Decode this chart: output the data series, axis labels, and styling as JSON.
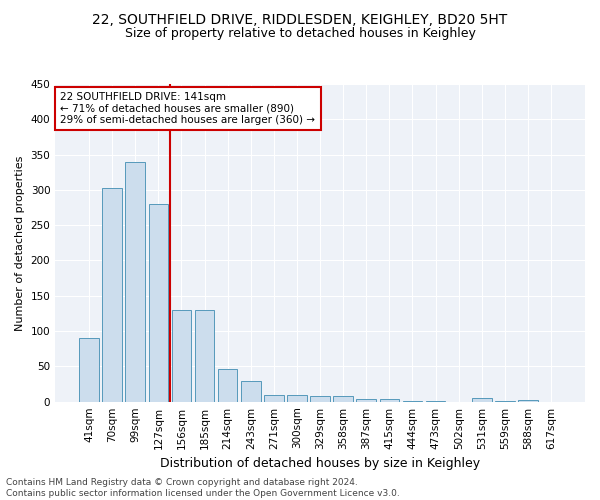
{
  "title_line1": "22, SOUTHFIELD DRIVE, RIDDLESDEN, KEIGHLEY, BD20 5HT",
  "title_line2": "Size of property relative to detached houses in Keighley",
  "xlabel": "Distribution of detached houses by size in Keighley",
  "ylabel": "Number of detached properties",
  "categories": [
    "41sqm",
    "70sqm",
    "99sqm",
    "127sqm",
    "156sqm",
    "185sqm",
    "214sqm",
    "243sqm",
    "271sqm",
    "300sqm",
    "329sqm",
    "358sqm",
    "387sqm",
    "415sqm",
    "444sqm",
    "473sqm",
    "502sqm",
    "531sqm",
    "559sqm",
    "588sqm",
    "617sqm"
  ],
  "values": [
    90,
    302,
    340,
    280,
    130,
    130,
    47,
    30,
    10,
    10,
    8,
    8,
    4,
    4,
    1,
    1,
    0,
    5,
    1,
    3,
    0
  ],
  "bar_color": "#ccdded",
  "bar_edge_color": "#5599bb",
  "vertical_line_color": "#cc0000",
  "annotation_text": "22 SOUTHFIELD DRIVE: 141sqm\n← 71% of detached houses are smaller (890)\n29% of semi-detached houses are larger (360) →",
  "annotation_box_facecolor": "#ffffff",
  "annotation_box_edgecolor": "#cc0000",
  "ylim": [
    0,
    450
  ],
  "yticks": [
    0,
    50,
    100,
    150,
    200,
    250,
    300,
    350,
    400,
    450
  ],
  "footer_text": "Contains HM Land Registry data © Crown copyright and database right 2024.\nContains public sector information licensed under the Open Government Licence v3.0.",
  "bg_color": "#eef2f8",
  "grid_color": "#ffffff",
  "title_fontsize": 10,
  "subtitle_fontsize": 9,
  "ylabel_fontsize": 8,
  "xlabel_fontsize": 9,
  "tick_fontsize": 7.5,
  "annotation_fontsize": 7.5,
  "footer_fontsize": 6.5
}
